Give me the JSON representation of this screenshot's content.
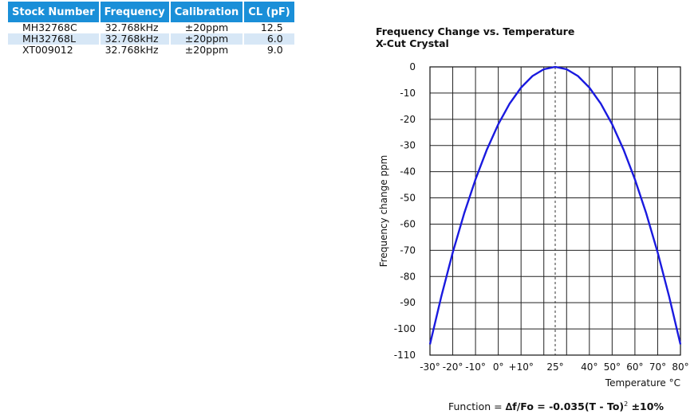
{
  "table": {
    "headers": [
      "Stock Number",
      "Frequency",
      "Calibration",
      "CL (pF)"
    ],
    "rows": [
      [
        "MH32768C",
        "32.768kHz",
        "±20ppm",
        "12.5"
      ],
      [
        "MH32768L",
        "32.768kHz",
        "±20ppm",
        "6.0"
      ],
      [
        "XT009012",
        "32.768kHz",
        "±20ppm",
        "9.0"
      ]
    ]
  },
  "chart_data": {
    "type": "line",
    "title": "Frequency Change vs. Temperature",
    "subtitle": "X-Cut Crystal",
    "xlabel": "Temperature °C",
    "ylabel": "Frequency change ppm",
    "xlim": [
      -30,
      80
    ],
    "ylim": [
      -110,
      0
    ],
    "x_ticks": [
      -30,
      -20,
      -10,
      0,
      10,
      20,
      30,
      40,
      50,
      60,
      70,
      80
    ],
    "y_ticks": [
      0,
      -10,
      -20,
      -30,
      -40,
      -50,
      -60,
      -70,
      -80,
      -90,
      -100,
      -110
    ],
    "x_tick_labels": [
      {
        "x": -30,
        "label": "-30°"
      },
      {
        "x": -20,
        "label": "-20°"
      },
      {
        "x": -10,
        "label": "-10°"
      },
      {
        "x": 0,
        "label": "0°"
      },
      {
        "x": 10,
        "label": "+10°"
      },
      {
        "x": 25,
        "label": "25°"
      },
      {
        "x": 40,
        "label": "40°"
      },
      {
        "x": 50,
        "label": "50°"
      },
      {
        "x": 60,
        "label": "60°"
      },
      {
        "x": 70,
        "label": "70°"
      },
      {
        "x": 80,
        "label": "80°"
      }
    ],
    "reference_line_x": 25,
    "grid": true,
    "line_color": "#1a1adf",
    "series": [
      {
        "x": [
          -30,
          -25,
          -20,
          -15,
          -10,
          -5,
          0,
          5,
          10,
          15,
          20,
          25,
          30,
          35,
          40,
          45,
          50,
          55,
          60,
          65,
          70,
          75,
          80
        ],
        "y": [
          -105.9,
          -87.5,
          -70.9,
          -56.0,
          -42.9,
          -31.5,
          -21.9,
          -14.0,
          -7.9,
          -3.5,
          -0.9,
          0,
          -0.9,
          -3.5,
          -7.9,
          -14.0,
          -21.9,
          -31.5,
          -42.9,
          -56.0,
          -70.9,
          -87.5,
          -105.9
        ]
      }
    ]
  },
  "formula": {
    "prefix": "Function = ",
    "main": "∆f/Fo = -0.035(T - To)",
    "exponent": "2",
    "suffix": " ±10%"
  }
}
